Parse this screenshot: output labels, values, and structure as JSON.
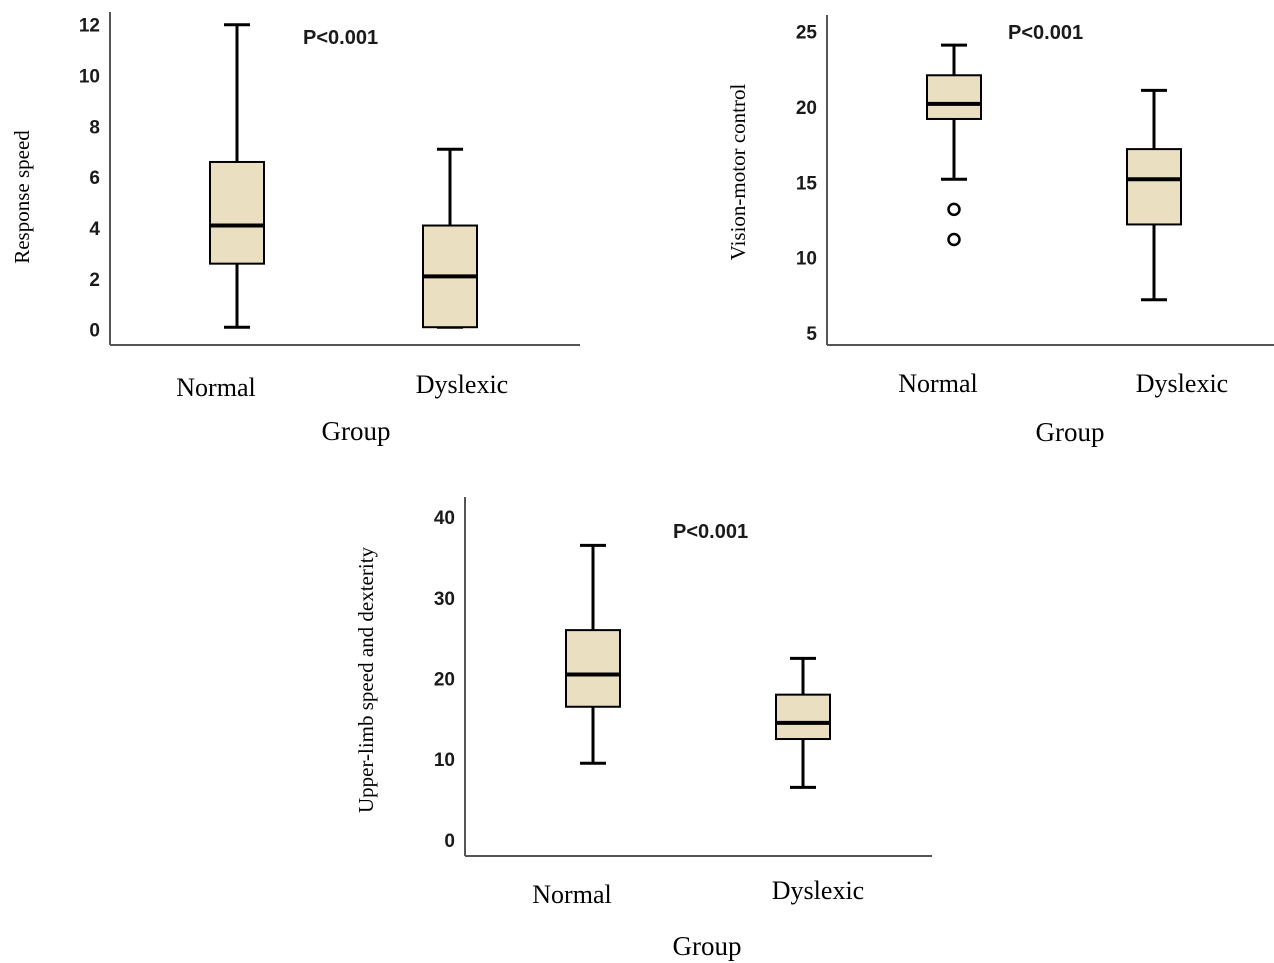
{
  "chart_data": [
    {
      "type": "box",
      "title": "",
      "annotation": "P<0.001",
      "xlabel": "Group",
      "ylabel": "Response speed",
      "categories": [
        "Normal",
        "Dyslexic"
      ],
      "yticks": [
        0,
        2,
        4,
        6,
        8,
        10,
        12
      ],
      "ylim": [
        -0.6,
        12.5
      ],
      "boxes": [
        {
          "min": 0.1,
          "q1": 2.6,
          "median": 4.1,
          "q3": 6.6,
          "max": 12.0,
          "outliers": []
        },
        {
          "min": 0.1,
          "q1": 0.1,
          "median": 2.1,
          "q3": 4.1,
          "max": 7.1,
          "outliers": []
        }
      ]
    },
    {
      "type": "box",
      "title": "",
      "annotation": "P<0.001",
      "xlabel": "Group",
      "ylabel": "Vision-motor control",
      "categories": [
        "Normal",
        "Dyslexic"
      ],
      "yticks": [
        5,
        10,
        15,
        20,
        25
      ],
      "ylim": [
        4.2,
        26.1
      ],
      "boxes": [
        {
          "min": 15.2,
          "q1": 19.2,
          "median": 20.2,
          "q3": 22.1,
          "max": 24.1,
          "outliers": [
            13.2,
            11.2
          ]
        },
        {
          "min": 7.2,
          "q1": 12.2,
          "median": 15.2,
          "q3": 17.2,
          "max": 21.1,
          "outliers": []
        }
      ]
    },
    {
      "type": "box",
      "title": "",
      "annotation": "P<0.001",
      "xlabel": "Group",
      "ylabel": "Upper-limb speed and dexterity",
      "categories": [
        "Normal",
        "Dyslexic"
      ],
      "yticks": [
        0,
        10,
        20,
        30,
        40
      ],
      "ylim": [
        -2,
        42.5
      ],
      "boxes": [
        {
          "min": 9.5,
          "q1": 16.5,
          "median": 20.5,
          "q3": 26.0,
          "max": 36.5,
          "outliers": []
        },
        {
          "min": 6.5,
          "q1": 12.5,
          "median": 14.5,
          "q3": 18.0,
          "max": 22.5,
          "outliers": []
        }
      ]
    }
  ],
  "colors": {
    "box_fill": "#ebdfc1",
    "stroke": "#000000",
    "axis": "#555555"
  }
}
